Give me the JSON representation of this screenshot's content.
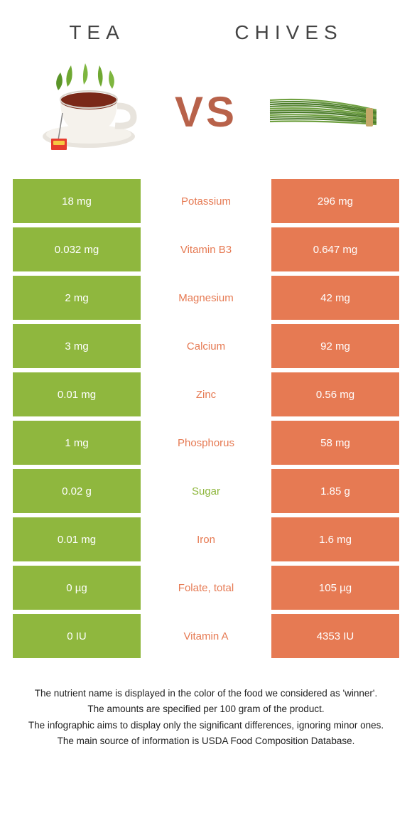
{
  "header": {
    "left_title": "TEA",
    "right_title": "CHIVES",
    "vs_label": "VS"
  },
  "colors": {
    "left": "#8fb73e",
    "right": "#e67a53",
    "left_text": "#8fb73e",
    "right_text": "#e67a53",
    "footer_text": "#222222"
  },
  "rows": [
    {
      "label": "Potassium",
      "left": "18 mg",
      "right": "296 mg",
      "winner": "right"
    },
    {
      "label": "Vitamin B3",
      "left": "0.032 mg",
      "right": "0.647 mg",
      "winner": "right"
    },
    {
      "label": "Magnesium",
      "left": "2 mg",
      "right": "42 mg",
      "winner": "right"
    },
    {
      "label": "Calcium",
      "left": "3 mg",
      "right": "92 mg",
      "winner": "right"
    },
    {
      "label": "Zinc",
      "left": "0.01 mg",
      "right": "0.56 mg",
      "winner": "right"
    },
    {
      "label": "Phosphorus",
      "left": "1 mg",
      "right": "58 mg",
      "winner": "right"
    },
    {
      "label": "Sugar",
      "left": "0.02 g",
      "right": "1.85 g",
      "winner": "left"
    },
    {
      "label": "Iron",
      "left": "0.01 mg",
      "right": "1.6 mg",
      "winner": "right"
    },
    {
      "label": "Folate, total",
      "left": "0 µg",
      "right": "105 µg",
      "winner": "right"
    },
    {
      "label": "Vitamin A",
      "left": "0 IU",
      "right": "4353 IU",
      "winner": "right"
    }
  ],
  "footer": {
    "line1": "The nutrient name is displayed in the color of the food we considered as 'winner'.",
    "line2": "The amounts are specified per 100 gram of the product.",
    "line3": "The infographic aims to display only the significant differences, ignoring minor ones.",
    "line4": "The main source of information is USDA Food Composition Database."
  }
}
